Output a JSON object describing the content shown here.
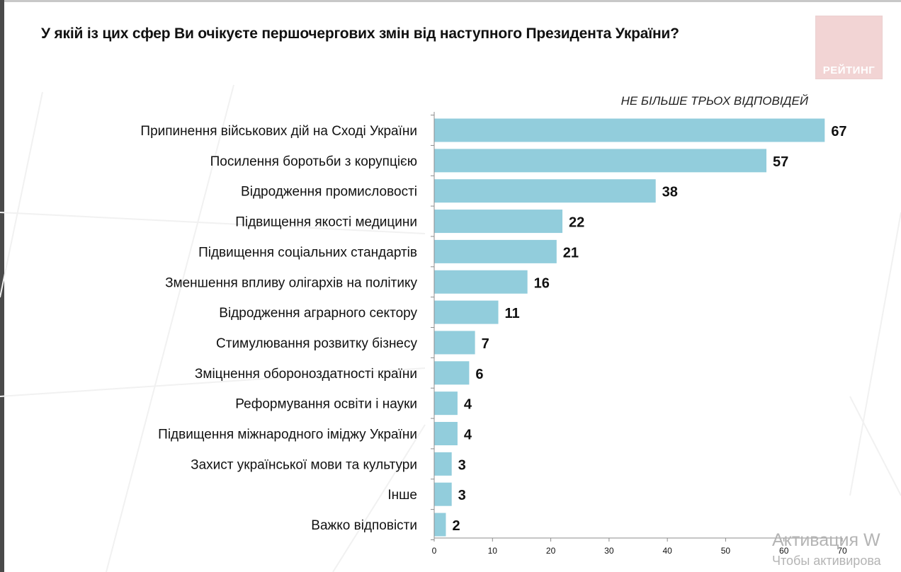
{
  "title": "У якій із цих сфер Ви очікуєте першочергових змін від наступного Президента України?",
  "logo_text": "РЕЙТИНГ",
  "note": "НЕ БІЛЬШЕ ТРЬОХ ВІДПОВІДЕЙ",
  "watermark": {
    "line1": "Активация W",
    "line2": "Чтобы активирова"
  },
  "colors": {
    "bar": "#92cddc",
    "logo_bg": "#f2d4d4",
    "axis": "#8c8c8c"
  },
  "chart_data": {
    "type": "bar",
    "orientation": "horizontal",
    "categories": [
      "Припинення військових дій на Сході України",
      "Посилення боротьби з корупцією",
      "Відродження промисловості",
      "Підвищення якості медицини",
      "Підвищення соціальних стандартів",
      "Зменшення впливу олігархів на політику",
      "Відродження аграрного сектору",
      "Стимулювання розвитку бізнесу",
      "Зміцнення обороноздатності країни",
      "Реформування освіти і науки",
      "Підвищення міжнародного іміджу України",
      "Захист української мови та культури",
      "Інше",
      "Важко відповісти"
    ],
    "values": [
      67,
      57,
      38,
      22,
      21,
      16,
      11,
      7,
      6,
      4,
      4,
      3,
      3,
      2
    ],
    "data_labels": [
      "67",
      "57",
      "38",
      "22",
      "21",
      "16",
      "11",
      "7",
      "6",
      "4",
      "4",
      "3",
      "3",
      "2"
    ],
    "xlim": [
      0,
      70
    ],
    "ticks": [
      0,
      10,
      20,
      30,
      40,
      50,
      60,
      70
    ],
    "tick_labels": [
      "0",
      "10",
      "20",
      "30",
      "40",
      "50",
      "60",
      "70"
    ],
    "grid": false,
    "legend": "none"
  }
}
